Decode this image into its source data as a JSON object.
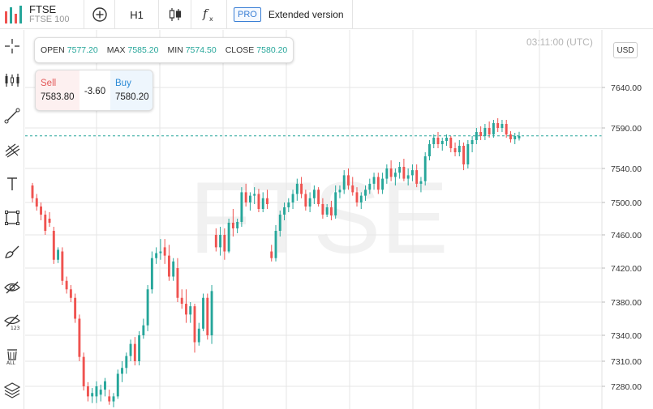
{
  "header": {
    "symbol": "FTSE",
    "name": "FTSE 100",
    "timeframe": "H1",
    "pro_badge": "PRO",
    "extended_label": "Extended version"
  },
  "icons": {
    "logo": "bars-logo-icon",
    "add": "plus-circle-icon",
    "chart_type": "candlestick-icon",
    "indicators": "fx-icon",
    "left_tools": [
      "crosshair-icon",
      "candle-settings-icon",
      "trend-line-icon",
      "fib-tool-icon",
      "text-tool-icon",
      "rectangle-tool-icon",
      "brush-tool-icon",
      "hide-drawings-icon",
      "hide-indicators-icon",
      "delete-all-icon",
      "layers-icon"
    ]
  },
  "ohlc": {
    "open_label": "OPEN",
    "open": "7577.20",
    "max_label": "MAX",
    "max": "7585.20",
    "min_label": "MIN",
    "min": "7574.50",
    "close_label": "CLOSE",
    "close": "7580.20"
  },
  "trade": {
    "sell_label": "Sell",
    "sell_price": "7583.80",
    "spread": "-3.60",
    "buy_label": "Buy",
    "buy_price": "7580.20"
  },
  "time_label": "03:11:00 (UTC)",
  "currency": "USD",
  "colors": {
    "up": "#26a69a",
    "down": "#ef5350",
    "sell": "#e35a5a",
    "buy": "#2c8bd6",
    "grid": "#e6e6e6",
    "accent": "#3a7fd5"
  },
  "chart_data": {
    "type": "candlestick",
    "watermark": "FTSE",
    "y_ticks": [
      7280,
      7310,
      7340,
      7380,
      7420,
      7460,
      7500,
      7540,
      7590,
      7640
    ],
    "y_tick_labels": [
      "7280.00",
      "7310.00",
      "7340.00",
      "7380.00",
      "7420.00",
      "7460.00",
      "7500.00",
      "7540.00",
      "7590.00",
      "7640.00"
    ],
    "current_price": 7580.2,
    "candles": [
      [
        7520,
        7523,
        7500,
        7505
      ],
      [
        7505,
        7510,
        7490,
        7495
      ],
      [
        7495,
        7500,
        7478,
        7485
      ],
      [
        7485,
        7490,
        7460,
        7465
      ],
      [
        7480,
        7488,
        7470,
        7475
      ],
      [
        7465,
        7470,
        7425,
        7430
      ],
      [
        7430,
        7445,
        7426,
        7442
      ],
      [
        7440,
        7445,
        7400,
        7405
      ],
      [
        7405,
        7410,
        7390,
        7395
      ],
      [
        7395,
        7400,
        7380,
        7385
      ],
      [
        7385,
        7390,
        7355,
        7360
      ],
      [
        7360,
        7365,
        7310,
        7315
      ],
      [
        7315,
        7320,
        7275,
        7280
      ],
      [
        7280,
        7285,
        7262,
        7268
      ],
      [
        7268,
        7278,
        7260,
        7272
      ],
      [
        7268,
        7286,
        7260,
        7280
      ],
      [
        7270,
        7282,
        7262,
        7276
      ],
      [
        7276,
        7290,
        7268,
        7286
      ],
      [
        7268,
        7276,
        7258,
        7262
      ],
      [
        7262,
        7272,
        7255,
        7268
      ],
      [
        7268,
        7300,
        7265,
        7295
      ],
      [
        7295,
        7310,
        7285,
        7302
      ],
      [
        7302,
        7320,
        7295,
        7316
      ],
      [
        7316,
        7335,
        7310,
        7330
      ],
      [
        7330,
        7338,
        7305,
        7310
      ],
      [
        7310,
        7345,
        7305,
        7340
      ],
      [
        7340,
        7360,
        7336,
        7352
      ],
      [
        7352,
        7400,
        7345,
        7395
      ],
      [
        7395,
        7440,
        7390,
        7432
      ],
      [
        7432,
        7445,
        7425,
        7438
      ],
      [
        7438,
        7455,
        7430,
        7440
      ],
      [
        7445,
        7455,
        7425,
        7435
      ],
      [
        7435,
        7448,
        7405,
        7410
      ],
      [
        7410,
        7432,
        7405,
        7428
      ],
      [
        7420,
        7432,
        7380,
        7385
      ],
      [
        7385,
        7395,
        7372,
        7378
      ],
      [
        7378,
        7395,
        7355,
        7365
      ],
      [
        7365,
        7380,
        7355,
        7375
      ],
      [
        7375,
        7378,
        7320,
        7332
      ],
      [
        7332,
        7355,
        7328,
        7348
      ],
      [
        7348,
        7390,
        7345,
        7385
      ],
      [
        7385,
        7390,
        7335,
        7340
      ],
      [
        7340,
        7400,
        7330,
        7393
      ],
      [
        7460,
        7468,
        7440,
        7445
      ],
      [
        7445,
        7470,
        7435,
        7460
      ],
      [
        7460,
        7468,
        7430,
        7440
      ],
      [
        7440,
        7480,
        7438,
        7475
      ],
      [
        7475,
        7492,
        7458,
        7468
      ],
      [
        7468,
        7480,
        7462,
        7476
      ],
      [
        7476,
        7518,
        7470,
        7512
      ],
      [
        7512,
        7522,
        7495,
        7500
      ],
      [
        7500,
        7512,
        7490,
        7508
      ],
      [
        7508,
        7518,
        7498,
        7510
      ],
      [
        7510,
        7516,
        7488,
        7492
      ],
      [
        7492,
        7512,
        7488,
        7505
      ],
      [
        7505,
        7515,
        7492,
        7498
      ],
      [
        7440,
        7448,
        7428,
        7432
      ],
      [
        7432,
        7472,
        7428,
        7465
      ],
      [
        7465,
        7490,
        7458,
        7485
      ],
      [
        7485,
        7500,
        7478,
        7494
      ],
      [
        7494,
        7505,
        7488,
        7500
      ],
      [
        7500,
        7515,
        7492,
        7510
      ],
      [
        7510,
        7528,
        7502,
        7522
      ],
      [
        7522,
        7530,
        7505,
        7510
      ],
      [
        7510,
        7515,
        7490,
        7495
      ],
      [
        7495,
        7512,
        7488,
        7505
      ],
      [
        7505,
        7520,
        7498,
        7515
      ],
      [
        7515,
        7518,
        7495,
        7498
      ],
      [
        7498,
        7505,
        7480,
        7485
      ],
      [
        7485,
        7498,
        7482,
        7494
      ],
      [
        7494,
        7502,
        7478,
        7484
      ],
      [
        7484,
        7520,
        7480,
        7512
      ],
      [
        7512,
        7520,
        7505,
        7515
      ],
      [
        7515,
        7538,
        7510,
        7532
      ],
      [
        7532,
        7540,
        7515,
        7520
      ],
      [
        7520,
        7530,
        7508,
        7512
      ],
      [
        7512,
        7518,
        7495,
        7500
      ],
      [
        7500,
        7512,
        7492,
        7508
      ],
      [
        7508,
        7520,
        7502,
        7515
      ],
      [
        7515,
        7528,
        7510,
        7522
      ],
      [
        7522,
        7535,
        7515,
        7530
      ],
      [
        7530,
        7535,
        7510,
        7515
      ],
      [
        7515,
        7535,
        7510,
        7528
      ],
      [
        7528,
        7545,
        7522,
        7540
      ],
      [
        7540,
        7550,
        7525,
        7530
      ],
      [
        7530,
        7540,
        7520,
        7535
      ],
      [
        7535,
        7548,
        7528,
        7542
      ],
      [
        7542,
        7552,
        7525,
        7528
      ],
      [
        7528,
        7540,
        7520,
        7532
      ],
      [
        7532,
        7545,
        7525,
        7538
      ],
      [
        7538,
        7545,
        7518,
        7522
      ],
      [
        7522,
        7530,
        7512,
        7525
      ],
      [
        7525,
        7560,
        7520,
        7555
      ],
      [
        7555,
        7575,
        7550,
        7570
      ],
      [
        7570,
        7582,
        7565,
        7578
      ],
      [
        7578,
        7585,
        7565,
        7570
      ],
      [
        7570,
        7578,
        7562,
        7574
      ],
      [
        7574,
        7582,
        7568,
        7578
      ],
      [
        7578,
        7580,
        7560,
        7565
      ],
      [
        7565,
        7572,
        7555,
        7560
      ],
      [
        7560,
        7575,
        7555,
        7568
      ],
      [
        7568,
        7572,
        7538,
        7545
      ],
      [
        7545,
        7575,
        7540,
        7570
      ],
      [
        7570,
        7580,
        7560,
        7575
      ],
      [
        7575,
        7590,
        7570,
        7585
      ],
      [
        7585,
        7592,
        7575,
        7580
      ],
      [
        7580,
        7595,
        7575,
        7590
      ],
      [
        7590,
        7598,
        7578,
        7582
      ],
      [
        7582,
        7600,
        7578,
        7596
      ],
      [
        7596,
        7602,
        7585,
        7590
      ],
      [
        7590,
        7600,
        7585,
        7595
      ],
      [
        7595,
        7600,
        7578,
        7582
      ],
      [
        7582,
        7586,
        7572,
        7576
      ],
      [
        7576,
        7584,
        7570,
        7580
      ],
      [
        7577.2,
        7585.2,
        7574.5,
        7580.2
      ]
    ]
  }
}
